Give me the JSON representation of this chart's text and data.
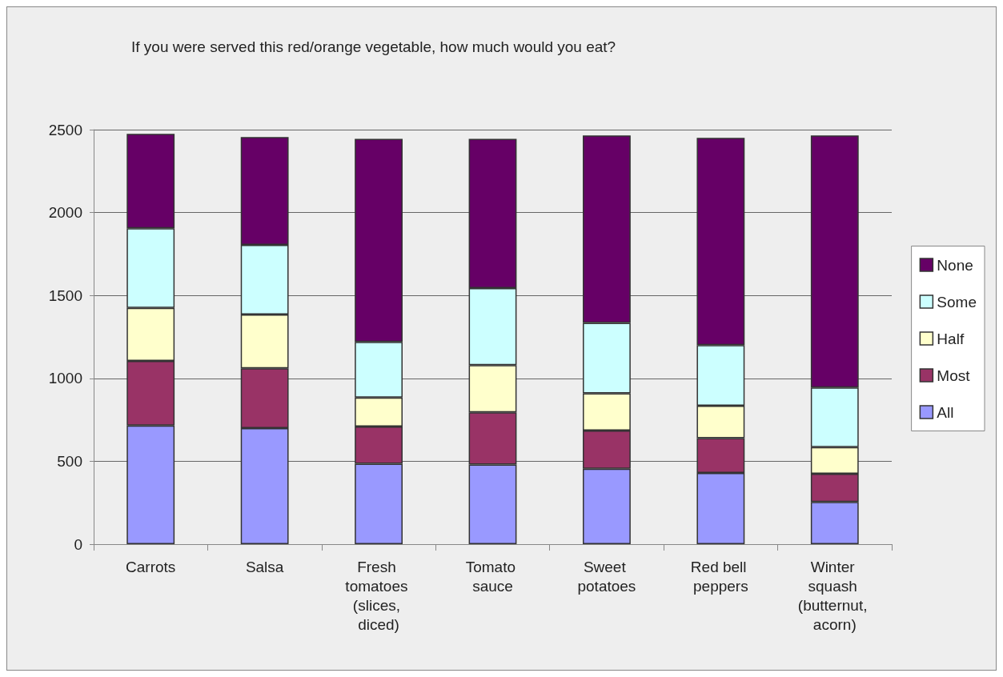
{
  "chart_data": {
    "type": "bar",
    "stacked": true,
    "title": "If you were served this red/orange vegetable, how much would you eat?",
    "categories": [
      "Carrots",
      "Salsa",
      "Fresh tomatoes (slices, diced)",
      "Tomato sauce",
      "Sweet potatoes",
      "Red bell peppers",
      "Winter squash (butternut, acorn)"
    ],
    "series": [
      {
        "name": "All",
        "color": "#9999ff",
        "values": [
          715,
          700,
          485,
          480,
          455,
          430,
          255
        ]
      },
      {
        "name": "Most",
        "color": "#993366",
        "values": [
          390,
          360,
          225,
          315,
          230,
          210,
          170
        ]
      },
      {
        "name": "Half",
        "color": "#ffffcc",
        "values": [
          320,
          325,
          175,
          285,
          225,
          195,
          160
        ]
      },
      {
        "name": "Some",
        "color": "#ccffff",
        "values": [
          480,
          420,
          335,
          465,
          425,
          365,
          360
        ]
      },
      {
        "name": "None",
        "color": "#660066",
        "values": [
          570,
          650,
          1225,
          900,
          1130,
          1250,
          1520
        ]
      }
    ],
    "ylim": [
      0,
      2500
    ],
    "yticks": [
      0,
      500,
      1000,
      1500,
      2000,
      2500
    ],
    "grid": "y",
    "legend": "right"
  }
}
